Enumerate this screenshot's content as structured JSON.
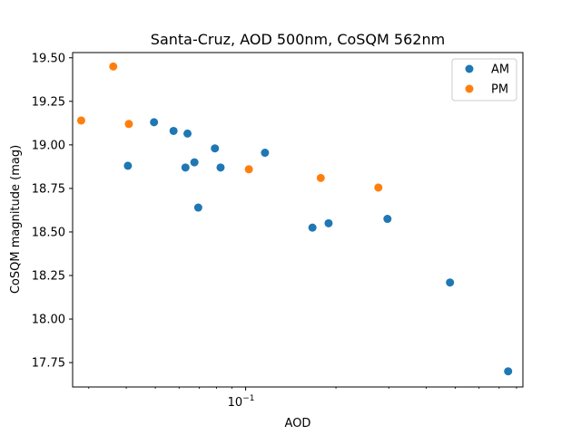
{
  "chart_data": {
    "type": "scatter",
    "title": "Santa-Cruz, AOD 500nm, CoSQM 562nm",
    "xlabel": "AOD",
    "ylabel": "CoSQM magnitude (mag)",
    "xscale": "log",
    "xlim": [
      0.0265,
      0.84
    ],
    "ylim": [
      17.61,
      19.53
    ],
    "xticks": [
      {
        "value": 0.1,
        "label": "10",
        "exponent": "−1"
      }
    ],
    "yticks": [
      {
        "value": 17.75,
        "label": "17.75"
      },
      {
        "value": 18.0,
        "label": "18.00"
      },
      {
        "value": 18.25,
        "label": "18.25"
      },
      {
        "value": 18.5,
        "label": "18.50"
      },
      {
        "value": 18.75,
        "label": "18.75"
      },
      {
        "value": 19.0,
        "label": "19.00"
      },
      {
        "value": 19.25,
        "label": "19.25"
      },
      {
        "value": 19.5,
        "label": "19.50"
      }
    ],
    "grid": false,
    "legend_position": "top-right",
    "series": [
      {
        "name": "AM",
        "color": "#1f77b4",
        "points": [
          {
            "x": 0.0405,
            "y": 18.88
          },
          {
            "x": 0.0495,
            "y": 19.13
          },
          {
            "x": 0.0575,
            "y": 19.08
          },
          {
            "x": 0.064,
            "y": 19.065
          },
          {
            "x": 0.063,
            "y": 18.87
          },
          {
            "x": 0.0675,
            "y": 18.9
          },
          {
            "x": 0.0695,
            "y": 18.64
          },
          {
            "x": 0.079,
            "y": 18.98
          },
          {
            "x": 0.0825,
            "y": 18.87
          },
          {
            "x": 0.116,
            "y": 18.955
          },
          {
            "x": 0.167,
            "y": 18.525
          },
          {
            "x": 0.189,
            "y": 18.55
          },
          {
            "x": 0.297,
            "y": 18.575
          },
          {
            "x": 0.48,
            "y": 18.21
          },
          {
            "x": 0.75,
            "y": 17.7
          }
        ]
      },
      {
        "name": "PM",
        "color": "#ff7f0e",
        "points": [
          {
            "x": 0.0283,
            "y": 19.14
          },
          {
            "x": 0.0362,
            "y": 19.45
          },
          {
            "x": 0.0408,
            "y": 19.12
          },
          {
            "x": 0.1025,
            "y": 18.86
          },
          {
            "x": 0.178,
            "y": 18.81
          },
          {
            "x": 0.277,
            "y": 18.755
          }
        ]
      }
    ]
  }
}
